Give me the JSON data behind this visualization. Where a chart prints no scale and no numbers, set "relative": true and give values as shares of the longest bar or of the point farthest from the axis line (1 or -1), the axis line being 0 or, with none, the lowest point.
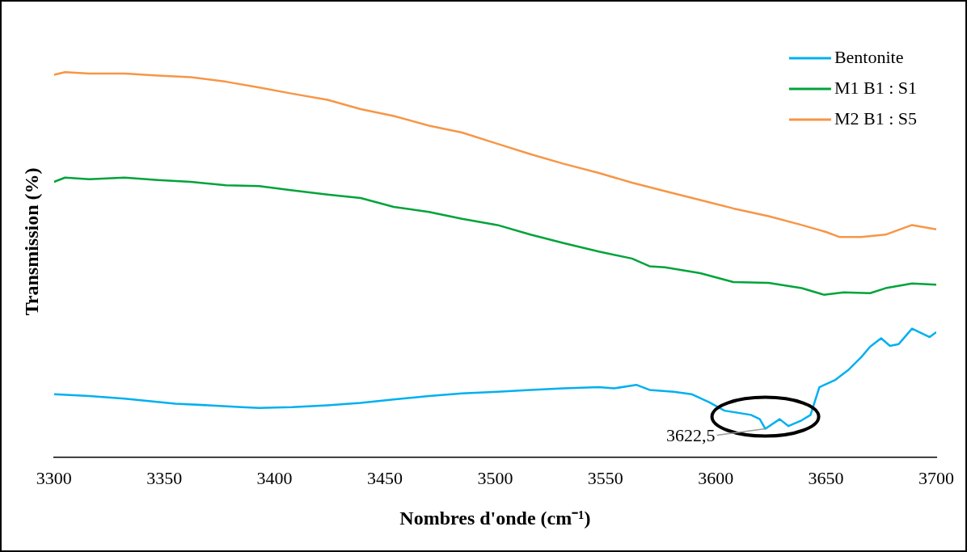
{
  "chart_data": {
    "type": "line",
    "relative": true,
    "xlabel": "Nombres d'onde (cm⁻¹)",
    "ylabel": "Transmission (%)",
    "xlim": [
      3300,
      3700
    ],
    "xticks": [
      3300,
      3350,
      3400,
      3450,
      3500,
      3550,
      3600,
      3650,
      3700
    ],
    "grid": false,
    "legend": "top right",
    "marker": "none",
    "line_style": "solid",
    "annotations": [
      {
        "text": "3622,5",
        "x": 3622.5,
        "y": 0.074
      }
    ],
    "series": [
      {
        "name": "Bentonite",
        "color": "#00b0f0",
        "x": [
          3300,
          3316,
          3332,
          3355,
          3370,
          3385,
          3393,
          3408,
          3424,
          3439,
          3454,
          3470,
          3485,
          3501,
          3516,
          3531,
          3547,
          3554,
          3564,
          3570,
          3581,
          3589,
          3597,
          3604,
          3616,
          3620,
          3622.5,
          3629,
          3633,
          3639,
          3643,
          3647,
          3654,
          3660,
          3666,
          3670,
          3675,
          3679,
          3683,
          3689,
          3693,
          3697,
          3700
        ],
        "values": [
          0.164,
          0.159,
          0.152,
          0.139,
          0.135,
          0.13,
          0.128,
          0.13,
          0.135,
          0.141,
          0.15,
          0.159,
          0.166,
          0.17,
          0.175,
          0.179,
          0.182,
          0.179,
          0.188,
          0.175,
          0.17,
          0.164,
          0.143,
          0.121,
          0.11,
          0.099,
          0.074,
          0.099,
          0.081,
          0.096,
          0.11,
          0.182,
          0.2,
          0.226,
          0.26,
          0.287,
          0.309,
          0.289,
          0.294,
          0.334,
          0.323,
          0.312,
          0.325
        ]
      },
      {
        "name": "M1 B1 : S1",
        "color": "#00a33a",
        "x": [
          3300,
          3305,
          3316,
          3332,
          3347,
          3362,
          3378,
          3393,
          3408,
          3424,
          3439,
          3454,
          3470,
          3485,
          3501,
          3516,
          3531,
          3547,
          3562,
          3570,
          3577,
          3593,
          3608,
          3624,
          3639,
          3649,
          3658,
          3670,
          3677,
          3689,
          3700
        ],
        "values": [
          0.715,
          0.726,
          0.722,
          0.726,
          0.72,
          0.715,
          0.706,
          0.704,
          0.693,
          0.682,
          0.673,
          0.65,
          0.637,
          0.619,
          0.603,
          0.578,
          0.556,
          0.534,
          0.516,
          0.496,
          0.493,
          0.478,
          0.455,
          0.453,
          0.439,
          0.422,
          0.428,
          0.426,
          0.439,
          0.451,
          0.448
        ]
      },
      {
        "name": "M2 B1 : S5",
        "color": "#f79646",
        "x": [
          3300,
          3305,
          3316,
          3332,
          3347,
          3362,
          3378,
          3393,
          3408,
          3424,
          3439,
          3454,
          3470,
          3485,
          3501,
          3516,
          3531,
          3547,
          3562,
          3577,
          3593,
          3608,
          3624,
          3639,
          3650,
          3656,
          3666,
          3677,
          3689,
          3700
        ],
        "values": [
          0.993,
          1,
          0.996,
          0.996,
          0.991,
          0.987,
          0.975,
          0.96,
          0.944,
          0.928,
          0.904,
          0.886,
          0.861,
          0.843,
          0.814,
          0.787,
          0.762,
          0.738,
          0.713,
          0.691,
          0.668,
          0.646,
          0.626,
          0.603,
          0.585,
          0.572,
          0.572,
          0.578,
          0.603,
          0.592
        ]
      }
    ]
  }
}
